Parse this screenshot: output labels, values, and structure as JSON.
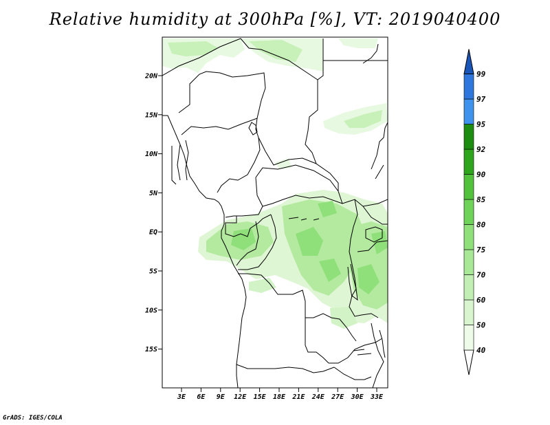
{
  "title": "Relative humidity at 300hPa [%], VT: 2019040400",
  "credit": "GrADS: IGES/COLA",
  "map": {
    "lat_ticks": [
      "20N",
      "15N",
      "10N",
      "5N",
      "EQ",
      "5S",
      "10S",
      "15S"
    ],
    "lon_ticks": [
      "3E",
      "6E",
      "9E",
      "12E",
      "15E",
      "18E",
      "21E",
      "24E",
      "27E",
      "30E",
      "33E"
    ]
  },
  "colorbar": {
    "levels": [
      "40",
      "50",
      "60",
      "70",
      "75",
      "80",
      "85",
      "90",
      "92",
      "95",
      "97",
      "99"
    ],
    "colors": {
      "c40_50": "#eefbe8",
      "c50_60": "#d9f5cf",
      "c60_70": "#c2efb3",
      "c70_75": "#a9e897",
      "c75_80": "#8fe07b",
      "c80_85": "#6fd35a",
      "c85_90": "#52c23d",
      "c90_92": "#2fa41d",
      "c92_95": "#1c8d10",
      "c95_97": "#3f93ec",
      "c97_99": "#2f77dc",
      "c99_up": "#1a56b8"
    }
  }
}
